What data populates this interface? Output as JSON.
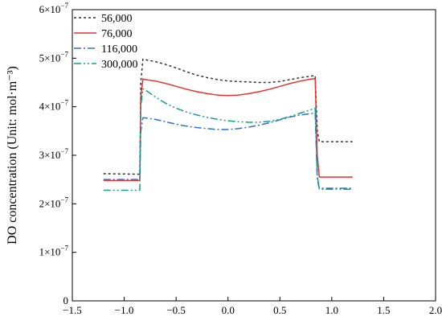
{
  "chart_data": {
    "type": "line",
    "title": "",
    "xlabel": "",
    "ylabel": "DO concentration (Unit: mol·m⁻³)",
    "xlim": [
      -1.5,
      2.0
    ],
    "ylim": [
      0,
      6e-07
    ],
    "x_ticks": [
      -1.5,
      -1.0,
      -0.5,
      0.0,
      0.5,
      1.0,
      1.5,
      2.0
    ],
    "x_tick_labels": [
      "−1.5",
      "−1.0",
      "−0.5",
      "0.0",
      "0.5",
      "1.0",
      "1.5",
      "2.0"
    ],
    "y_ticks": [
      0,
      1e-07,
      2e-07,
      3e-07,
      4e-07,
      5e-07,
      6e-07
    ],
    "y_tick_labels": [
      {
        "mantissa": "0",
        "exp": ""
      },
      {
        "mantissa": "1×10",
        "exp": "−7"
      },
      {
        "mantissa": "2×10",
        "exp": "−7"
      },
      {
        "mantissa": "3×10",
        "exp": "−7"
      },
      {
        "mantissa": "4×10",
        "exp": "−7"
      },
      {
        "mantissa": "5×10",
        "exp": "−7"
      },
      {
        "mantissa": "6×10",
        "exp": "−7"
      }
    ],
    "grid": false,
    "legend_position": "top-left",
    "series": [
      {
        "name": "56,000",
        "color": "#333333",
        "dash": "3,3",
        "x": [
          -1.2,
          -0.85,
          -0.84,
          -0.82,
          -0.8,
          -0.7,
          -0.6,
          -0.5,
          -0.4,
          -0.3,
          -0.2,
          -0.1,
          0.0,
          0.1,
          0.2,
          0.3,
          0.4,
          0.5,
          0.6,
          0.7,
          0.8,
          0.84,
          0.86,
          0.88,
          1.2
        ],
        "y": [
          2.62e-07,
          2.61e-07,
          4.5e-07,
          4.98e-07,
          4.97e-07,
          4.93e-07,
          4.87e-07,
          4.8e-07,
          4.72e-07,
          4.65e-07,
          4.6e-07,
          4.56e-07,
          4.53e-07,
          4.52e-07,
          4.51e-07,
          4.5e-07,
          4.5e-07,
          4.52e-07,
          4.56e-07,
          4.6e-07,
          4.63e-07,
          4.64e-07,
          3.5e-07,
          3.28e-07,
          3.28e-07
        ]
      },
      {
        "name": "76,000",
        "color": "#e8312f",
        "dash": "",
        "x": [
          -1.2,
          -0.85,
          -0.84,
          -0.82,
          -0.8,
          -0.7,
          -0.6,
          -0.5,
          -0.4,
          -0.3,
          -0.2,
          -0.1,
          0.0,
          0.1,
          0.2,
          0.3,
          0.4,
          0.5,
          0.6,
          0.7,
          0.8,
          0.84,
          0.86,
          0.88,
          1.2
        ],
        "y": [
          2.48e-07,
          2.48e-07,
          4.2e-07,
          4.57e-07,
          4.56e-07,
          4.53e-07,
          4.48e-07,
          4.42e-07,
          4.36e-07,
          4.31e-07,
          4.27e-07,
          4.24e-07,
          4.23e-07,
          4.24e-07,
          4.27e-07,
          4.31e-07,
          4.36e-07,
          4.42e-07,
          4.48e-07,
          4.53e-07,
          4.57e-07,
          4.58e-07,
          3e-07,
          2.55e-07,
          2.55e-07
        ]
      },
      {
        "name": "116,000",
        "color": "#2f6fd6",
        "dash": "9,3,2,3",
        "x": [
          -1.2,
          -0.85,
          -0.84,
          -0.82,
          -0.8,
          -0.7,
          -0.6,
          -0.5,
          -0.4,
          -0.3,
          -0.2,
          -0.1,
          0.0,
          0.1,
          0.2,
          0.3,
          0.4,
          0.5,
          0.6,
          0.7,
          0.8,
          0.84,
          0.86,
          0.88,
          1.2
        ],
        "y": [
          2.5e-07,
          2.5e-07,
          3.5e-07,
          3.77e-07,
          3.77e-07,
          3.74e-07,
          3.69e-07,
          3.64e-07,
          3.6e-07,
          3.57e-07,
          3.55e-07,
          3.53e-07,
          3.53e-07,
          3.55e-07,
          3.58e-07,
          3.62e-07,
          3.67e-07,
          3.73e-07,
          3.79e-07,
          3.83e-07,
          3.86e-07,
          3.87e-07,
          2.5e-07,
          2.32e-07,
          2.32e-07
        ]
      },
      {
        "name": "300,000",
        "color": "#13a08a",
        "dash": "9,3,2,3,2,3",
        "x": [
          -1.2,
          -0.85,
          -0.84,
          -0.82,
          -0.8,
          -0.7,
          -0.6,
          -0.5,
          -0.4,
          -0.3,
          -0.2,
          -0.1,
          0.0,
          0.1,
          0.2,
          0.3,
          0.4,
          0.5,
          0.6,
          0.7,
          0.8,
          0.84,
          0.86,
          0.88,
          1.2
        ],
        "y": [
          2.28e-07,
          2.28e-07,
          4e-07,
          4.37e-07,
          4.35e-07,
          4.2e-07,
          4.07e-07,
          3.97e-07,
          3.89e-07,
          3.83e-07,
          3.78e-07,
          3.74e-07,
          3.71e-07,
          3.69e-07,
          3.68e-07,
          3.68e-07,
          3.7e-07,
          3.74e-07,
          3.8e-07,
          3.87e-07,
          3.94e-07,
          3.97e-07,
          2.6e-07,
          2.3e-07,
          2.3e-07
        ]
      }
    ]
  }
}
